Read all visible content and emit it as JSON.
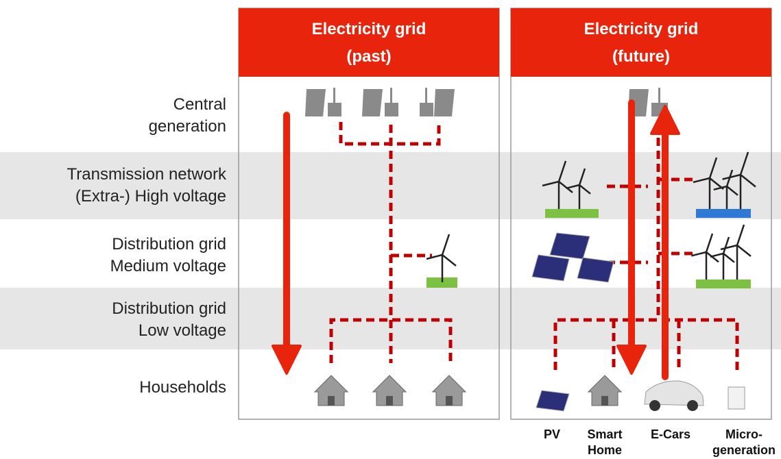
{
  "panels": [
    {
      "title_lines": [
        "Electricity grid",
        "(past)"
      ]
    },
    {
      "title_lines": [
        "Electricity grid",
        "(future)"
      ]
    }
  ],
  "rows": [
    {
      "lines": [
        "Central",
        "generation"
      ]
    },
    {
      "lines": [
        "Transmission network",
        "(Extra-) High voltage"
      ]
    },
    {
      "lines": [
        "Distribution grid",
        "Medium voltage"
      ]
    },
    {
      "lines": [
        "Distribution grid",
        "Low voltage"
      ]
    },
    {
      "lines": [
        "Households"
      ]
    }
  ],
  "device_labels": [
    {
      "lines": [
        "PV"
      ]
    },
    {
      "lines": [
        "Smart",
        "Home"
      ]
    },
    {
      "lines": [
        "E-Cars"
      ]
    },
    {
      "lines": [
        "Micro-",
        "generation"
      ]
    }
  ]
}
